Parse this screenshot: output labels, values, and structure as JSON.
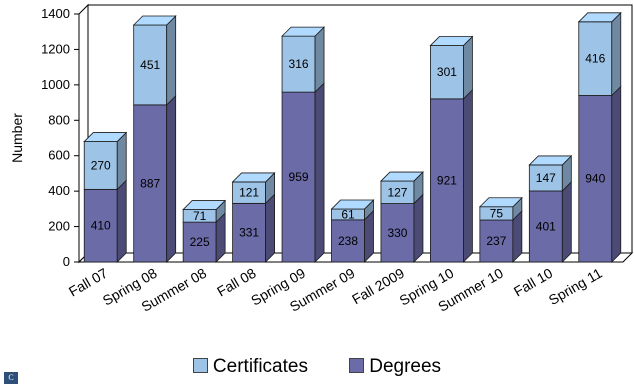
{
  "chart_data": {
    "type": "bar",
    "stacked": true,
    "three_d": true,
    "categories": [
      "Fall 07",
      "Spring 08",
      "Summer 08",
      "Fall 08",
      "Spring 09",
      "Summer 09",
      "Fall 2009",
      "Spring 10",
      "Summer 10",
      "Fall 10",
      "Spring 11"
    ],
    "series": [
      {
        "name": "Degrees",
        "values": [
          410,
          887,
          225,
          331,
          959,
          238,
          330,
          921,
          237,
          401,
          940
        ],
        "color": "#6b6ba8"
      },
      {
        "name": "Certificates",
        "values": [
          270,
          451,
          71,
          121,
          316,
          61,
          127,
          301,
          75,
          147,
          416
        ],
        "color": "#9dc3e6"
      }
    ],
    "ylabel": "Number",
    "ylim": [
      0,
      1400
    ],
    "yticks": [
      0,
      200,
      400,
      600,
      800,
      1000,
      1200,
      1400
    ],
    "legend_position": "bottom",
    "grid": false
  },
  "legend": {
    "certificates_label": "Certificates",
    "degrees_label": "Degrees"
  },
  "logo_text": "C"
}
